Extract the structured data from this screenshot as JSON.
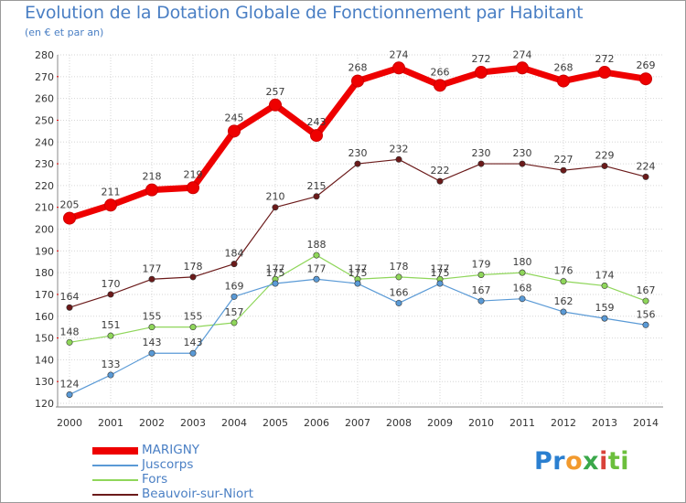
{
  "chart_data": {
    "type": "line",
    "title": "Evolution de la Dotation Globale de Fonctionnement par Habitant",
    "subtitle": "(en € et par an)",
    "x": [
      "2000",
      "2001",
      "2002",
      "2003",
      "2004",
      "2005",
      "2006",
      "2007",
      "2008",
      "2009",
      "2010",
      "2011",
      "2012",
      "2013",
      "2014"
    ],
    "ylim": [
      120,
      280
    ],
    "yticks": [
      120,
      130,
      140,
      150,
      160,
      170,
      180,
      190,
      200,
      210,
      220,
      230,
      240,
      250,
      260,
      270,
      280
    ],
    "grid": true,
    "legend": "bottom-left",
    "series": [
      {
        "name": "Beauvoir-sur-Niort",
        "color": "#6b1a1a",
        "values": [
          164,
          170,
          177,
          178,
          184,
          210,
          215,
          230,
          232,
          222,
          230,
          230,
          227,
          229,
          224
        ]
      },
      {
        "name": "Fors",
        "color": "#8fd65a",
        "values": [
          148,
          151,
          155,
          155,
          157,
          177,
          188,
          177,
          178,
          177,
          179,
          180,
          176,
          174,
          167
        ]
      },
      {
        "name": "Juscorps",
        "color": "#5a9ad6",
        "values": [
          124,
          133,
          143,
          143,
          169,
          175,
          177,
          175,
          166,
          175,
          167,
          168,
          162,
          159,
          156
        ]
      },
      {
        "name": "MARIGNY",
        "color": "#ee0000",
        "values": [
          205,
          211,
          218,
          219,
          245,
          257,
          243,
          268,
          274,
          266,
          272,
          274,
          268,
          272,
          269
        ]
      }
    ],
    "legend_order": [
      "MARIGNY",
      "Juscorps",
      "Fors",
      "Beauvoir-sur-Niort"
    ]
  },
  "logo": {
    "parts": [
      "Pr",
      "o",
      "x",
      "i",
      "ti"
    ]
  }
}
